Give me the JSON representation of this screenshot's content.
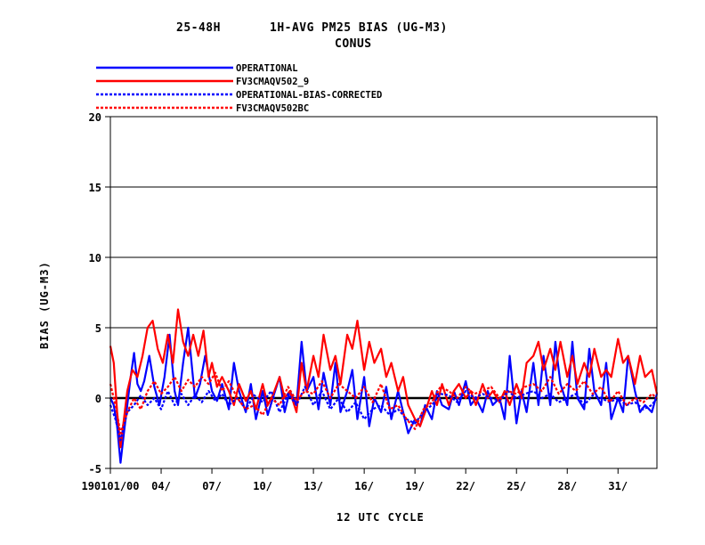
{
  "chart_data": {
    "type": "line",
    "title_line1_left": "25-48H",
    "title_line1_right": "1H-AVG PM25 BIAS (UG-M3)",
    "title_line2": "CONUS",
    "ylabel": "BIAS (UG-M3)",
    "xlabel": "12 UTC CYCLE",
    "ylim": [
      -5,
      20
    ],
    "yticks": [
      -5,
      0,
      5,
      10,
      15,
      20
    ],
    "grid_y": true,
    "zero_line": true,
    "xlim_days": [
      1,
      33.3
    ],
    "xticks": [
      {
        "day": 1,
        "label": "190101/00"
      },
      {
        "day": 4,
        "label": "04/"
      },
      {
        "day": 7,
        "label": "07/"
      },
      {
        "day": 10,
        "label": "10/"
      },
      {
        "day": 13,
        "label": "13/"
      },
      {
        "day": 16,
        "label": "16/"
      },
      {
        "day": 19,
        "label": "19/"
      },
      {
        "day": 22,
        "label": "22/"
      },
      {
        "day": 25,
        "label": "25/"
      },
      {
        "day": 28,
        "label": "28/"
      },
      {
        "day": 31,
        "label": "31/"
      }
    ],
    "legend_position": "top-left",
    "series": [
      {
        "name": "OPERATIONAL",
        "color": "#0000ff",
        "dash": "solid",
        "x": [
          1.0,
          1.2,
          1.4,
          1.6,
          1.8,
          2.0,
          2.2,
          2.4,
          2.6,
          2.8,
          3.0,
          3.3,
          3.6,
          3.9,
          4.2,
          4.5,
          4.8,
          5.0,
          5.3,
          5.6,
          6.0,
          6.3,
          6.6,
          7.0,
          7.3,
          7.6,
          8.0,
          8.3,
          8.6,
          9.0,
          9.3,
          9.6,
          10.0,
          10.3,
          10.6,
          11.0,
          11.3,
          11.6,
          12.0,
          12.3,
          12.6,
          13.0,
          13.3,
          13.6,
          14.0,
          14.3,
          14.6,
          15.0,
          15.3,
          15.6,
          16.0,
          16.3,
          16.6,
          17.0,
          17.3,
          17.6,
          18.0,
          18.3,
          18.6,
          19.0,
          19.3,
          19.6,
          20.0,
          20.3,
          20.6,
          21.0,
          21.3,
          21.6,
          22.0,
          22.3,
          22.6,
          23.0,
          23.3,
          23.6,
          24.0,
          24.3,
          24.6,
          25.0,
          25.3,
          25.6,
          26.0,
          26.3,
          26.6,
          27.0,
          27.3,
          27.6,
          28.0,
          28.3,
          28.6,
          29.0,
          29.3,
          29.6,
          30.0,
          30.3,
          30.6,
          31.0,
          31.3,
          31.6,
          32.0,
          32.3,
          32.6,
          33.0,
          33.3
        ],
        "y": [
          0.0,
          -0.5,
          -2.0,
          -4.6,
          -2.5,
          -0.5,
          1.5,
          3.2,
          1.0,
          0.5,
          1.2,
          3.0,
          0.8,
          -0.5,
          1.5,
          4.5,
          0.5,
          -0.5,
          2.5,
          5.0,
          0.0,
          1.0,
          3.0,
          0.5,
          -0.2,
          1.0,
          -0.8,
          2.5,
          0.5,
          -1.0,
          1.0,
          -1.5,
          0.5,
          -1.2,
          0.0,
          1.5,
          -1.0,
          0.5,
          -0.5,
          4.0,
          0.5,
          1.5,
          -0.8,
          1.8,
          -0.5,
          2.5,
          -1.0,
          0.5,
          2.0,
          -1.5,
          1.5,
          -2.0,
          0.0,
          -1.0,
          0.8,
          -1.5,
          0.5,
          -1.0,
          -2.5,
          -1.5,
          -2.0,
          -0.5,
          -1.5,
          0.5,
          -0.5,
          -0.8,
          0.5,
          -0.5,
          1.2,
          -0.5,
          0.0,
          -1.0,
          0.5,
          -0.5,
          0.0,
          -1.5,
          3.0,
          -1.8,
          0.5,
          -1.0,
          2.5,
          -0.5,
          3.0,
          -0.5,
          4.0,
          1.0,
          -0.5,
          4.0,
          0.0,
          -0.8,
          3.5,
          0.5,
          -0.5,
          2.5,
          -1.5,
          0.0,
          -1.0,
          3.0,
          0.5,
          -1.0,
          -0.5,
          -1.0,
          0.3
        ]
      },
      {
        "name": "FV3CMAQV502_9",
        "color": "#ff0000",
        "dash": "solid",
        "x": [
          1.0,
          1.2,
          1.4,
          1.6,
          1.8,
          2.0,
          2.3,
          2.6,
          2.9,
          3.2,
          3.5,
          3.8,
          4.1,
          4.4,
          4.7,
          5.0,
          5.3,
          5.6,
          5.9,
          6.2,
          6.5,
          6.8,
          7.0,
          7.3,
          7.6,
          8.0,
          8.3,
          8.6,
          9.0,
          9.3,
          9.6,
          10.0,
          10.3,
          10.6,
          11.0,
          11.3,
          11.6,
          12.0,
          12.3,
          12.6,
          13.0,
          13.3,
          13.6,
          14.0,
          14.3,
          14.6,
          15.0,
          15.3,
          15.6,
          16.0,
          16.3,
          16.6,
          17.0,
          17.3,
          17.6,
          18.0,
          18.3,
          18.6,
          19.0,
          19.3,
          19.6,
          20.0,
          20.3,
          20.6,
          21.0,
          21.3,
          21.6,
          22.0,
          22.3,
          22.6,
          23.0,
          23.3,
          23.6,
          24.0,
          24.3,
          24.6,
          25.0,
          25.3,
          25.6,
          26.0,
          26.3,
          26.6,
          27.0,
          27.3,
          27.6,
          28.0,
          28.3,
          28.6,
          29.0,
          29.3,
          29.6,
          30.0,
          30.3,
          30.6,
          31.0,
          31.3,
          31.6,
          32.0,
          32.3,
          32.6,
          33.0,
          33.3
        ],
        "y": [
          3.7,
          2.5,
          -1.0,
          -3.5,
          -1.5,
          0.5,
          2.0,
          1.5,
          3.0,
          5.0,
          5.5,
          3.5,
          2.5,
          4.5,
          2.5,
          6.3,
          4.0,
          3.0,
          4.5,
          3.0,
          4.8,
          1.5,
          2.5,
          0.8,
          1.5,
          0.5,
          -0.5,
          1.0,
          -0.2,
          0.5,
          -0.8,
          1.0,
          -0.5,
          0.2,
          1.5,
          0.0,
          0.5,
          -1.0,
          2.5,
          0.5,
          3.0,
          1.5,
          4.5,
          2.0,
          3.0,
          1.0,
          4.5,
          3.5,
          5.5,
          2.0,
          4.0,
          2.5,
          3.5,
          1.5,
          2.5,
          0.5,
          1.5,
          -0.5,
          -1.5,
          -2.0,
          -1.0,
          0.5,
          -0.5,
          1.0,
          -0.5,
          0.5,
          1.0,
          0.0,
          0.5,
          -0.5,
          1.0,
          0.0,
          0.5,
          -0.3,
          0.5,
          -0.5,
          1.0,
          0.0,
          2.5,
          3.0,
          4.0,
          2.0,
          3.5,
          2.0,
          4.0,
          1.5,
          3.0,
          1.0,
          2.5,
          1.5,
          3.5,
          1.5,
          2.0,
          1.5,
          4.2,
          2.5,
          3.0,
          1.0,
          3.0,
          1.5,
          2.0,
          0.3
        ]
      },
      {
        "name": "OPERATIONAL-BIAS-CORRECTED",
        "color": "#0000ff",
        "dash": "dashed",
        "x": [
          1.0,
          1.3,
          1.6,
          2.0,
          2.4,
          2.8,
          3.2,
          3.6,
          4.0,
          4.4,
          4.8,
          5.2,
          5.6,
          6.0,
          6.4,
          6.8,
          7.2,
          7.6,
          8.0,
          8.5,
          9.0,
          9.5,
          10.0,
          10.5,
          11.0,
          11.5,
          12.0,
          12.5,
          13.0,
          13.5,
          14.0,
          14.5,
          15.0,
          15.5,
          16.0,
          16.5,
          17.0,
          17.5,
          18.0,
          18.5,
          19.0,
          19.5,
          20.0,
          20.5,
          21.0,
          21.5,
          22.0,
          22.5,
          23.0,
          23.5,
          24.0,
          24.5,
          25.0,
          25.5,
          26.0,
          26.5,
          27.0,
          27.5,
          28.0,
          28.5,
          29.0,
          29.5,
          30.0,
          30.5,
          31.0,
          31.5,
          32.0,
          32.5,
          33.0,
          33.3
        ],
        "y": [
          -0.5,
          -1.5,
          -3.0,
          -1.0,
          -0.5,
          0.2,
          -0.5,
          0.0,
          -0.8,
          0.5,
          -0.5,
          0.3,
          -0.5,
          0.2,
          -0.3,
          0.5,
          -0.2,
          0.3,
          -0.5,
          0.0,
          -0.8,
          0.2,
          -0.3,
          0.5,
          -1.0,
          0.3,
          -0.5,
          0.8,
          -0.5,
          0.5,
          -0.8,
          0.0,
          -1.0,
          -0.3,
          -1.5,
          -0.8,
          -0.5,
          -1.2,
          -0.8,
          -1.5,
          -1.8,
          -1.0,
          -0.5,
          0.3,
          0.2,
          -0.3,
          0.5,
          0.0,
          0.3,
          0.0,
          -0.2,
          0.5,
          0.0,
          0.3,
          0.5,
          0.0,
          0.3,
          -0.3,
          0.0,
          0.3,
          -0.5,
          0.2,
          0.0,
          -0.3,
          0.0,
          -0.5,
          -0.3,
          -0.8,
          -0.5,
          0.0
        ]
      },
      {
        "name": "FV3CMAQV502BC",
        "color": "#ff0000",
        "dash": "dashed",
        "x": [
          1.0,
          1.3,
          1.6,
          2.0,
          2.4,
          2.8,
          3.2,
          3.6,
          4.0,
          4.4,
          4.8,
          5.2,
          5.6,
          6.0,
          6.4,
          6.8,
          7.2,
          7.6,
          8.0,
          8.5,
          9.0,
          9.5,
          10.0,
          10.5,
          11.0,
          11.5,
          12.0,
          12.5,
          13.0,
          13.5,
          14.0,
          14.5,
          15.0,
          15.5,
          16.0,
          16.5,
          17.0,
          17.5,
          18.0,
          18.5,
          19.0,
          19.5,
          20.0,
          20.5,
          21.0,
          21.5,
          22.0,
          22.5,
          23.0,
          23.5,
          24.0,
          24.5,
          25.0,
          25.5,
          26.0,
          26.5,
          27.0,
          27.5,
          28.0,
          28.5,
          29.0,
          29.5,
          30.0,
          30.5,
          31.0,
          31.5,
          32.0,
          32.5,
          33.0,
          33.3
        ],
        "y": [
          1.0,
          -0.5,
          -2.5,
          -1.0,
          0.0,
          -0.8,
          0.5,
          1.2,
          0.3,
          0.8,
          1.5,
          0.5,
          1.3,
          0.8,
          1.5,
          1.0,
          1.8,
          0.5,
          1.2,
          0.0,
          -0.8,
          -0.5,
          -1.2,
          0.0,
          -0.5,
          0.8,
          -0.2,
          0.5,
          0.3,
          1.2,
          0.0,
          1.0,
          0.5,
          0.0,
          0.8,
          -0.3,
          1.0,
          -0.8,
          -0.5,
          -1.5,
          -2.2,
          -0.8,
          -0.3,
          0.8,
          0.5,
          0.0,
          0.8,
          0.3,
          0.5,
          0.8,
          0.0,
          0.5,
          0.3,
          0.8,
          1.0,
          0.5,
          1.5,
          0.3,
          1.0,
          0.5,
          1.2,
          0.3,
          0.8,
          -0.3,
          0.5,
          -0.5,
          0.0,
          -0.3,
          0.3,
          0.0
        ]
      }
    ]
  }
}
